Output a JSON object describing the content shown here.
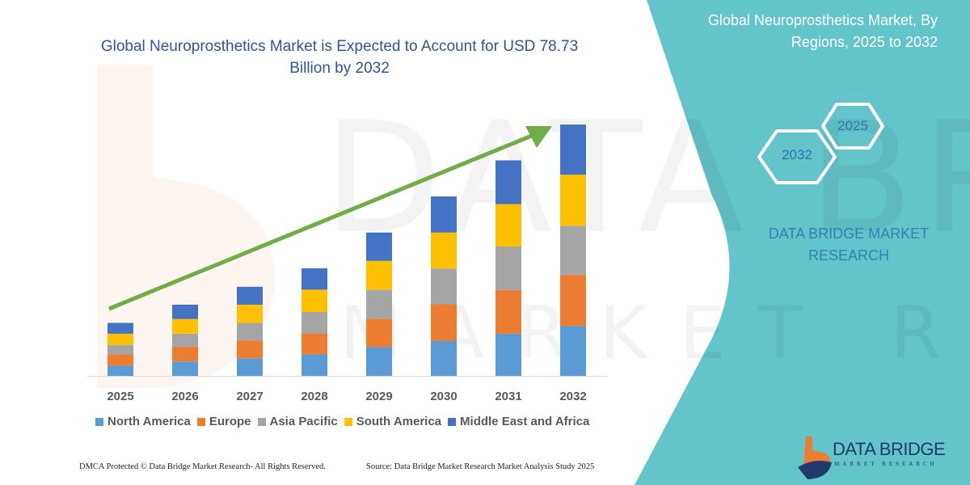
{
  "left_title": "Global Neuroprosthetics Market is Expected to Account for USD 78.73 Billion by 2032",
  "right_panel": {
    "title": "Global Neuroprosthetics Market, By Regions, 2025 to 2032",
    "hex_start": "2025",
    "hex_end": "2032",
    "brand_text": "DATA BRIDGE MARKET RESEARCH",
    "logo_text": "DATA BRIDGE",
    "logo_subtext": "MARKET RESEARCH",
    "panel_color": "#63c4c9"
  },
  "footer": {
    "left": "DMCA Protected © Data Bridge Market Research-  All Rights Reserved.",
    "right": "Source: Data Bridge Market Research  Market Analysis Study 2025"
  },
  "chart_data": {
    "type": "bar",
    "stacked": true,
    "title": "Global Neuroprosthetics Market is Expected to Account for USD 78.73 Billion by 2032",
    "categories": [
      "2025",
      "2026",
      "2027",
      "2028",
      "2029",
      "2030",
      "2031",
      "2032"
    ],
    "series": [
      {
        "name": "North America",
        "color": "#5b9bd5",
        "values": [
          3.2,
          4.5,
          5.5,
          6.7,
          9.0,
          11.0,
          13.2,
          15.6
        ]
      },
      {
        "name": "Europe",
        "color": "#ed7d31",
        "values": [
          3.5,
          4.6,
          5.6,
          6.6,
          8.9,
          11.4,
          13.7,
          16.0
        ]
      },
      {
        "name": "Asia Pacific",
        "color": "#a5a5a5",
        "values": [
          3.0,
          4.1,
          5.5,
          6.7,
          9.1,
          11.2,
          13.6,
          15.4
        ]
      },
      {
        "name": "South America",
        "color": "#ffc000",
        "values": [
          3.5,
          4.6,
          5.7,
          7.0,
          9.0,
          11.3,
          13.3,
          16.0
        ]
      },
      {
        "name": "Middle East and Africa",
        "color": "#4472c4",
        "values": [
          3.4,
          4.5,
          5.6,
          6.7,
          8.9,
          11.3,
          13.7,
          15.7
        ]
      }
    ],
    "trend_arrow_color": "#70ad47",
    "y_axis_shown": false,
    "grid": false,
    "legend_position": "bottom"
  }
}
